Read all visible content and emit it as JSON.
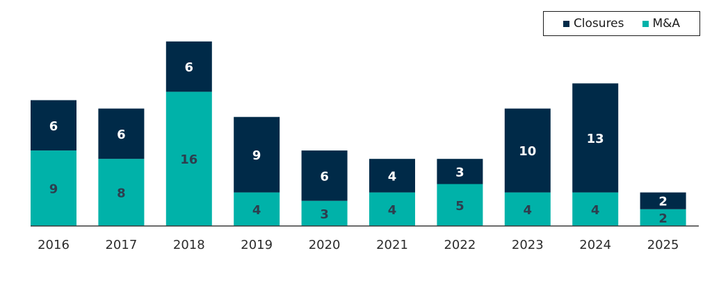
{
  "chart_data": {
    "type": "bar",
    "stacked": true,
    "categories": [
      "2016",
      "2017",
      "2018",
      "2019",
      "2020",
      "2021",
      "2022",
      "2023",
      "2024",
      "2025"
    ],
    "series": [
      {
        "name": "M&A",
        "values": [
          9,
          8,
          16,
          4,
          3,
          4,
          5,
          4,
          4,
          2
        ],
        "color": "#00b2a9",
        "label_color": "#2d3e4e"
      },
      {
        "name": "Closures",
        "values": [
          6,
          6,
          6,
          9,
          6,
          4,
          3,
          10,
          13,
          2
        ],
        "color": "#002a48",
        "label_color": "#ffffff"
      }
    ],
    "title": "",
    "xlabel": "",
    "ylabel": "",
    "ylim": [
      0,
      22
    ],
    "grid": false,
    "legend": "top-right",
    "legend_order": [
      "Closures",
      "M&A"
    ]
  }
}
